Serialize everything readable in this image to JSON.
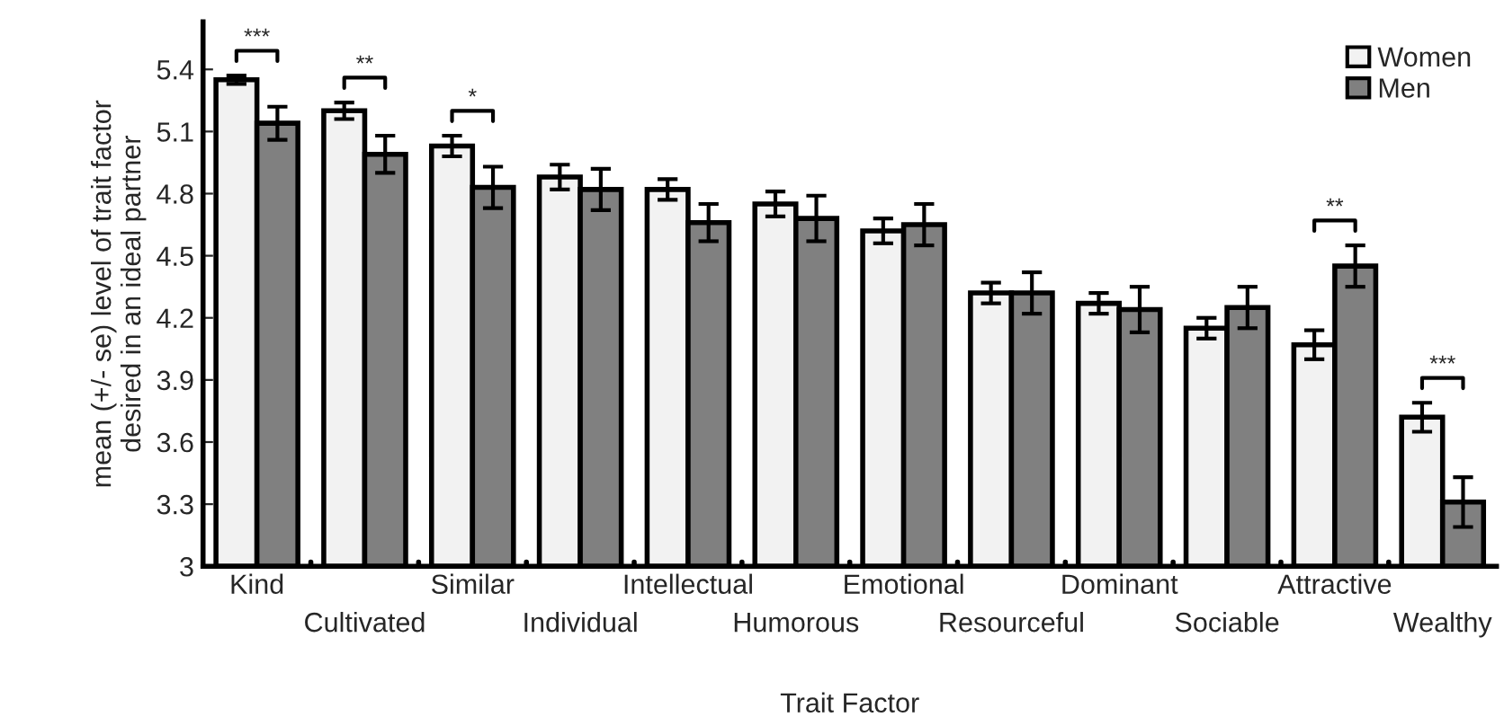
{
  "chart_data": {
    "type": "bar",
    "xlabel": "Trait Factor",
    "ylabel": "mean (+/- se) level of trait factor\ndesired in an ideal partner",
    "categories": [
      "Kind",
      "Cultivated",
      "Similar",
      "Individual",
      "Intellectual",
      "Humorous",
      "Emotional",
      "Resourceful",
      "Dominant",
      "Sociable",
      "Attractive",
      "Wealthy"
    ],
    "series": [
      {
        "name": "Women",
        "color": "#f2f2f2",
        "values": [
          5.35,
          5.2,
          5.03,
          4.88,
          4.82,
          4.75,
          4.62,
          4.32,
          4.27,
          4.15,
          4.07,
          3.72
        ],
        "errors": [
          0.02,
          0.04,
          0.05,
          0.06,
          0.05,
          0.06,
          0.06,
          0.05,
          0.05,
          0.05,
          0.07,
          0.07
        ]
      },
      {
        "name": "Men",
        "color": "#808080",
        "values": [
          5.14,
          4.99,
          4.83,
          4.82,
          4.66,
          4.68,
          4.65,
          4.32,
          4.24,
          4.25,
          4.45,
          3.31
        ],
        "errors": [
          0.08,
          0.09,
          0.1,
          0.1,
          0.09,
          0.11,
          0.1,
          0.1,
          0.11,
          0.1,
          0.1,
          0.12
        ]
      }
    ],
    "ylim": [
      3,
      5.63
    ],
    "yticks": [
      3,
      3.3,
      3.6,
      3.9,
      4.2,
      4.5,
      4.8,
      5.1,
      5.4
    ],
    "annotations": [
      "***",
      "**",
      "*",
      "**",
      "***"
    ],
    "legend": "top right",
    "grid": false
  }
}
